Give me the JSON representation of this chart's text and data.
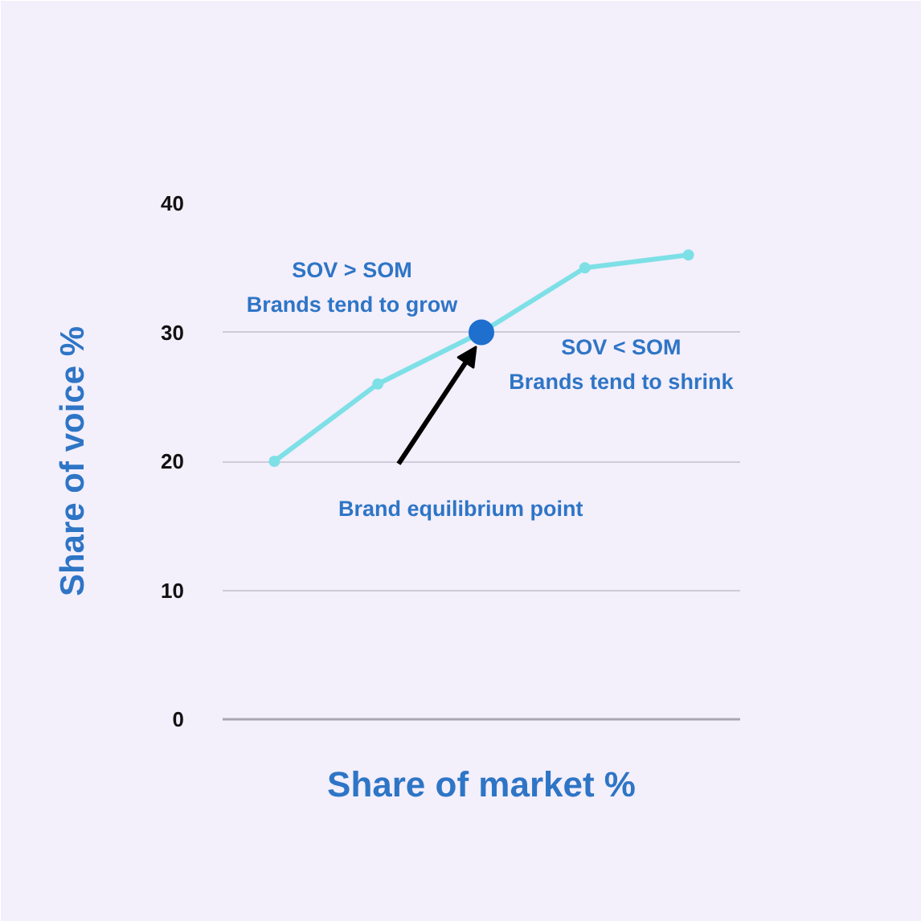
{
  "chart_data": {
    "type": "line",
    "xlabel": "Share of market %",
    "ylabel": "Share of voice %",
    "categories": [
      null,
      null,
      null,
      null,
      null
    ],
    "series": [
      {
        "color": "#7de0e6",
        "marker": "circle",
        "values": [
          20,
          26,
          30,
          35,
          36
        ]
      },
      {
        "type": "scatter",
        "color": "#1f6fcf",
        "marker": "circle",
        "values": [
          null,
          null,
          30,
          null,
          null
        ]
      }
    ],
    "annotations": [
      "SOV > SOM\nBrands tend to grow",
      "SOV < SOM\nBrands tend to shrink",
      "Brand equilibrium point"
    ],
    "ylim": [
      0,
      40
    ],
    "yticks": [
      0,
      10,
      20,
      30,
      40
    ],
    "grid": "y",
    "tick_labels": "y"
  }
}
